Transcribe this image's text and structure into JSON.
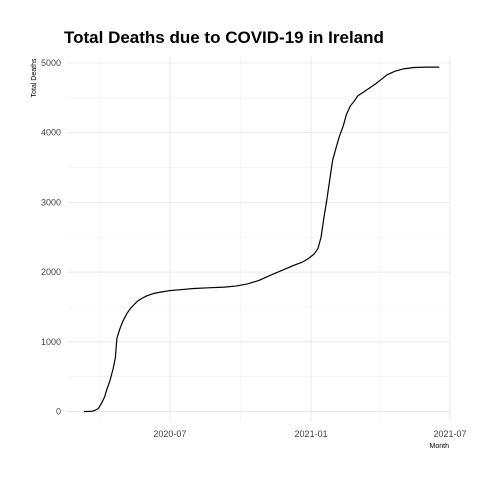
{
  "chart_data": {
    "type": "line",
    "title": "Total Deaths due to COVID-19 in Ireland",
    "xlabel": "Month",
    "ylabel": "Total Deaths",
    "x_axis": {
      "type": "date",
      "range": [
        "2020-02-18",
        "2021-07-01"
      ],
      "ticks": [
        {
          "value": "2020-07-01",
          "label": "2020-07"
        },
        {
          "value": "2021-01-01",
          "label": "2021-01"
        },
        {
          "value": "2021-07-01",
          "label": "2021-07"
        }
      ],
      "minor_ticks": [
        "2020-04-01",
        "2020-10-01",
        "2021-04-01"
      ]
    },
    "y_axis": {
      "range": [
        -150,
        5100
      ],
      "ticks": [
        0,
        1000,
        2000,
        3000,
        4000,
        5000
      ],
      "minor_ticks": [
        500,
        1500,
        2500,
        3500,
        4500
      ]
    },
    "grid": true,
    "series": [
      {
        "color": "#000000",
        "points": [
          [
            "2020-03-11",
            1
          ],
          [
            "2020-03-18",
            2
          ],
          [
            "2020-03-22",
            5
          ],
          [
            "2020-03-26",
            19
          ],
          [
            "2020-03-30",
            46
          ],
          [
            "2020-04-03",
            120
          ],
          [
            "2020-04-07",
            210
          ],
          [
            "2020-04-10",
            320
          ],
          [
            "2020-04-14",
            444
          ],
          [
            "2020-04-18",
            610
          ],
          [
            "2020-04-21",
            770
          ],
          [
            "2020-04-23",
            1050
          ],
          [
            "2020-04-27",
            1190
          ],
          [
            "2020-05-01",
            1300
          ],
          [
            "2020-05-06",
            1405
          ],
          [
            "2020-05-10",
            1470
          ],
          [
            "2020-05-15",
            1530
          ],
          [
            "2020-05-20",
            1585
          ],
          [
            "2020-05-25",
            1620
          ],
          [
            "2020-06-01",
            1660
          ],
          [
            "2020-06-10",
            1695
          ],
          [
            "2020-06-20",
            1715
          ],
          [
            "2020-07-01",
            1735
          ],
          [
            "2020-07-15",
            1748
          ],
          [
            "2020-08-01",
            1765
          ],
          [
            "2020-08-20",
            1775
          ],
          [
            "2020-09-10",
            1785
          ],
          [
            "2020-09-25",
            1800
          ],
          [
            "2020-10-10",
            1830
          ],
          [
            "2020-10-25",
            1880
          ],
          [
            "2020-11-10",
            1960
          ],
          [
            "2020-11-25",
            2030
          ],
          [
            "2020-12-10",
            2100
          ],
          [
            "2020-12-20",
            2140
          ],
          [
            "2020-12-28",
            2190
          ],
          [
            "2021-01-05",
            2260
          ],
          [
            "2021-01-10",
            2340
          ],
          [
            "2021-01-14",
            2500
          ],
          [
            "2021-01-18",
            2800
          ],
          [
            "2021-01-21",
            3000
          ],
          [
            "2021-01-25",
            3300
          ],
          [
            "2021-01-29",
            3600
          ],
          [
            "2021-02-03",
            3800
          ],
          [
            "2021-02-07",
            3950
          ],
          [
            "2021-02-12",
            4100
          ],
          [
            "2021-02-16",
            4260
          ],
          [
            "2021-02-21",
            4380
          ],
          [
            "2021-02-26",
            4450
          ],
          [
            "2021-03-03",
            4530
          ],
          [
            "2021-03-10",
            4580
          ],
          [
            "2021-03-18",
            4640
          ],
          [
            "2021-03-26",
            4700
          ],
          [
            "2021-04-02",
            4760
          ],
          [
            "2021-04-10",
            4830
          ],
          [
            "2021-04-20",
            4880
          ],
          [
            "2021-05-01",
            4915
          ],
          [
            "2021-05-15",
            4935
          ],
          [
            "2021-06-01",
            4940
          ],
          [
            "2021-06-17",
            4940
          ]
        ]
      }
    ]
  }
}
